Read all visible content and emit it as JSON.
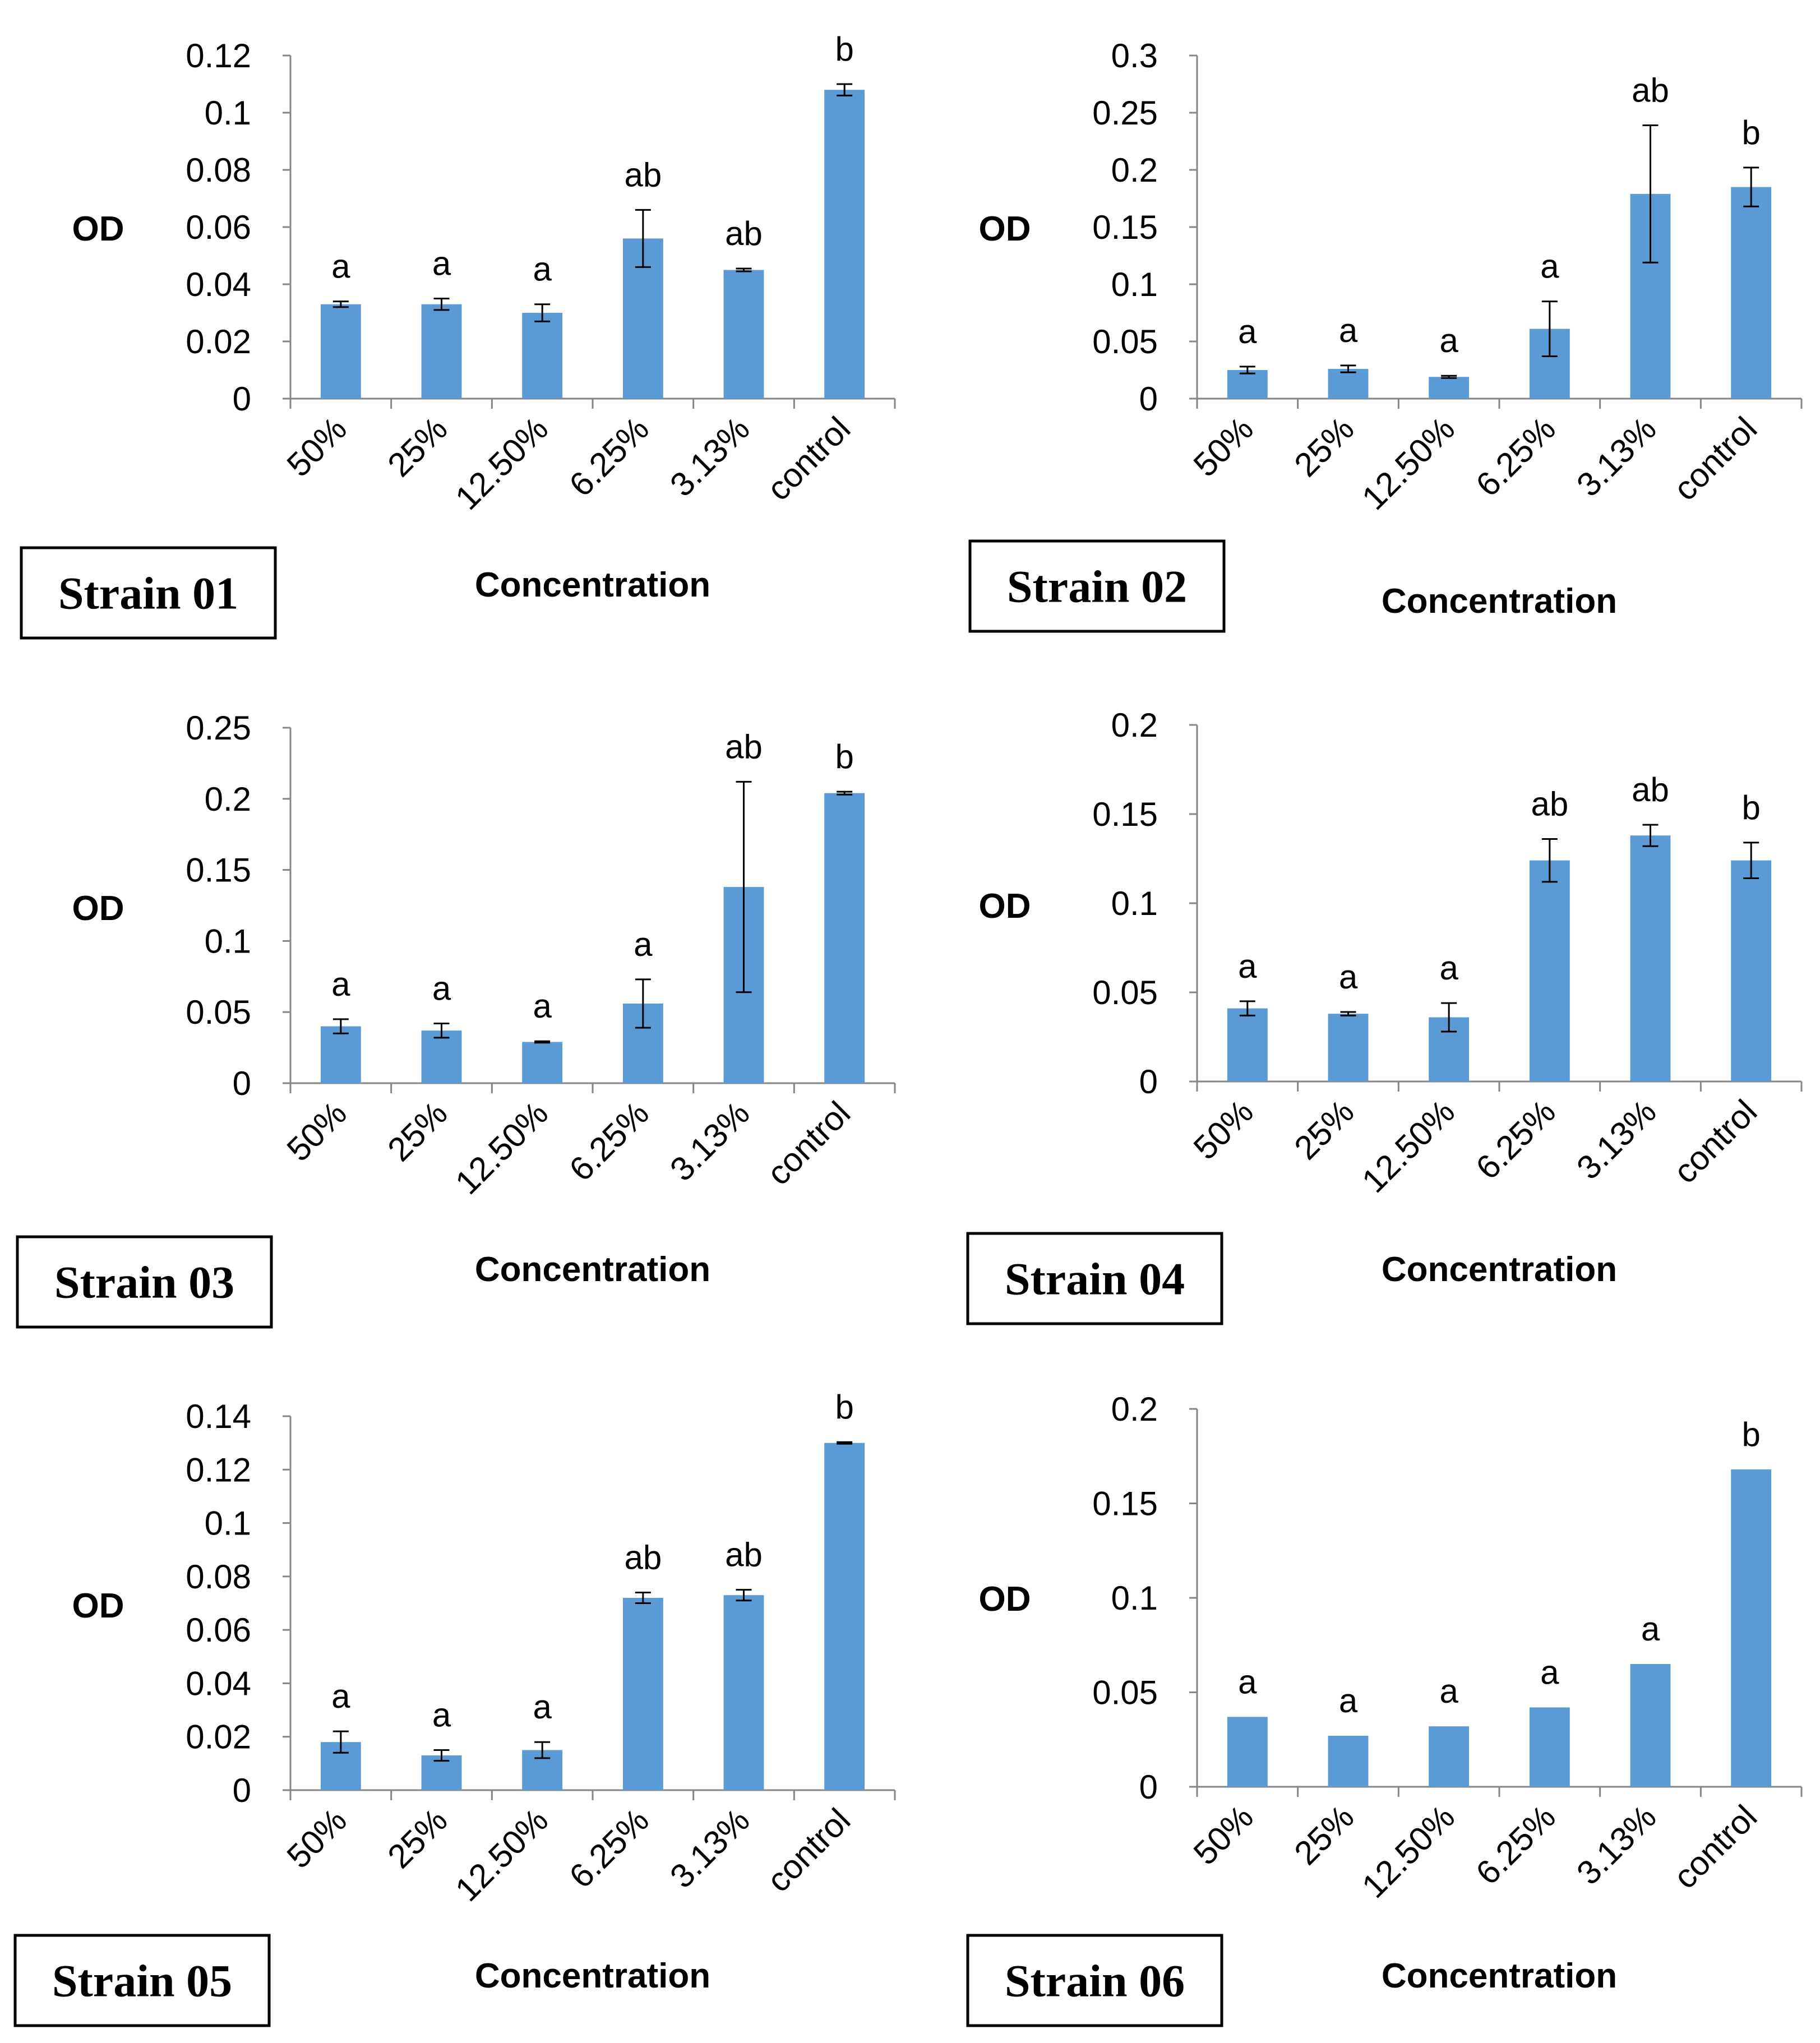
{
  "colors": {
    "bar": "#5b9bd5",
    "axis": "#868686",
    "text": "#000000"
  },
  "chart_data": [
    {
      "type": "bar",
      "title": "Strain 01",
      "xlabel": "Concentration",
      "ylabel": "OD",
      "categories": [
        "50%",
        "25%",
        "12.50%",
        "6.25%",
        "3.13%",
        "control"
      ],
      "values": [
        0.033,
        0.033,
        0.03,
        0.056,
        0.045,
        0.108
      ],
      "errors": [
        0.001,
        0.002,
        0.003,
        0.01,
        0.0005,
        0.002
      ],
      "significance": [
        "a",
        "a",
        "a",
        "ab",
        "ab",
        "b"
      ],
      "ylim": [
        0,
        0.12
      ],
      "yticks": [
        0,
        0.02,
        0.04,
        0.06,
        0.08,
        0.1,
        0.12
      ],
      "ytick_labels": [
        "0",
        "0.02",
        "0.04",
        "0.06",
        "0.08",
        "0.1",
        "0.12"
      ],
      "grid": false
    },
    {
      "type": "bar",
      "title": "Strain 02",
      "xlabel": "Concentration",
      "ylabel": "OD",
      "categories": [
        "50%",
        "25%",
        "12.50%",
        "6.25%",
        "3.13%",
        "control"
      ],
      "values": [
        0.025,
        0.026,
        0.019,
        0.061,
        0.179,
        0.185
      ],
      "errors": [
        0.003,
        0.003,
        0.001,
        0.024,
        0.06,
        0.017
      ],
      "significance": [
        "a",
        "a",
        "a",
        "a",
        "ab",
        "b"
      ],
      "ylim": [
        0,
        0.3
      ],
      "yticks": [
        0,
        0.05,
        0.1,
        0.15,
        0.2,
        0.25,
        0.3
      ],
      "ytick_labels": [
        "0",
        "0.05",
        "0.1",
        "0.15",
        "0.2",
        "0.25",
        "0.3"
      ],
      "grid": false
    },
    {
      "type": "bar",
      "title": "Strain 03",
      "xlabel": "Concentration",
      "ylabel": "OD",
      "categories": [
        "50%",
        "25%",
        "12.50%",
        "6.25%",
        "3.13%",
        "control"
      ],
      "values": [
        0.04,
        0.037,
        0.029,
        0.056,
        0.138,
        0.204
      ],
      "errors": [
        0.005,
        0.005,
        0.0005,
        0.017,
        0.074,
        0.001
      ],
      "significance": [
        "a",
        "a",
        "a",
        "a",
        "ab",
        "b"
      ],
      "ylim": [
        0,
        0.25
      ],
      "yticks": [
        0,
        0.05,
        0.1,
        0.15,
        0.2,
        0.25
      ],
      "ytick_labels": [
        "0",
        "0.05",
        "0.1",
        "0.15",
        "0.2",
        "0.25"
      ],
      "grid": false
    },
    {
      "type": "bar",
      "title": "Strain 04",
      "xlabel": "Concentration",
      "ylabel": "OD",
      "categories": [
        "50%",
        "25%",
        "12.50%",
        "6.25%",
        "3.13%",
        "control"
      ],
      "values": [
        0.041,
        0.038,
        0.036,
        0.124,
        0.138,
        0.124
      ],
      "errors": [
        0.004,
        0.001,
        0.008,
        0.012,
        0.006,
        0.01
      ],
      "significance": [
        "a",
        "a",
        "a",
        "ab",
        "ab",
        "b"
      ],
      "ylim": [
        0,
        0.2
      ],
      "yticks": [
        0,
        0.05,
        0.1,
        0.15,
        0.2
      ],
      "ytick_labels": [
        "0",
        "0.05",
        "0.1",
        "0.15",
        "0.2"
      ],
      "grid": false
    },
    {
      "type": "bar",
      "title": "Strain 05",
      "xlabel": "Concentration",
      "ylabel": "OD",
      "categories": [
        "50%",
        "25%",
        "12.50%",
        "6.25%",
        "3.13%",
        "control"
      ],
      "values": [
        0.018,
        0.013,
        0.015,
        0.072,
        0.073,
        0.13
      ],
      "errors": [
        0.004,
        0.002,
        0.003,
        0.002,
        0.002,
        0.0003
      ],
      "significance": [
        "a",
        "a",
        "a",
        "ab",
        "ab",
        "b"
      ],
      "ylim": [
        0,
        0.14
      ],
      "yticks": [
        0,
        0.02,
        0.04,
        0.06,
        0.08,
        0.1,
        0.12,
        0.14
      ],
      "ytick_labels": [
        "0",
        "0.02",
        "0.04",
        "0.06",
        "0.08",
        "0.1",
        "0.12",
        "0.14"
      ],
      "grid": false
    },
    {
      "type": "bar",
      "title": "Strain 06",
      "xlabel": "Concentration",
      "ylabel": "OD",
      "categories": [
        "50%",
        "25%",
        "12.50%",
        "6.25%",
        "3.13%",
        "control"
      ],
      "values": [
        0.037,
        0.027,
        0.032,
        0.042,
        0.065,
        0.168
      ],
      "errors": [
        0,
        0,
        0,
        0,
        0,
        0
      ],
      "significance": [
        "a",
        "a",
        "a",
        "a",
        "a",
        "b"
      ],
      "ylim": [
        0,
        0.2
      ],
      "yticks": [
        0,
        0.05,
        0.1,
        0.15,
        0.2
      ],
      "ytick_labels": [
        "0",
        "0.05",
        "0.1",
        "0.15",
        "0.2"
      ],
      "grid": false
    }
  ]
}
